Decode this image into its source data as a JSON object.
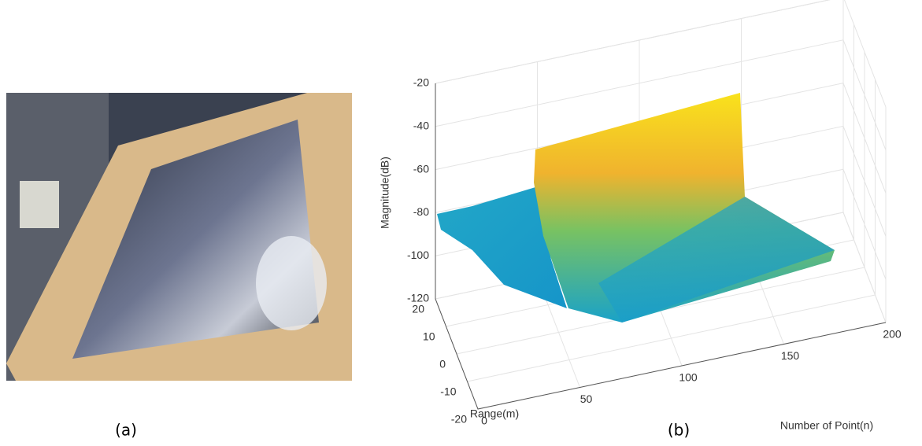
{
  "captions": {
    "a": "(a)",
    "b": "(b)"
  },
  "chart_data": {
    "type": "surface3d",
    "xlabel": "Number of Point(n)",
    "ylabel": "Range(m)",
    "zlabel": "Magnitude(dB)",
    "xlim": [
      0,
      200
    ],
    "xticks": [
      0,
      50,
      100,
      150,
      200
    ],
    "ylim": [
      -20,
      20
    ],
    "yticks": [
      -20,
      -10,
      0,
      10,
      20
    ],
    "zlim": [
      -120,
      -20
    ],
    "zticks": [
      -120,
      -100,
      -80,
      -60,
      -40,
      -20
    ],
    "grid": true
  }
}
